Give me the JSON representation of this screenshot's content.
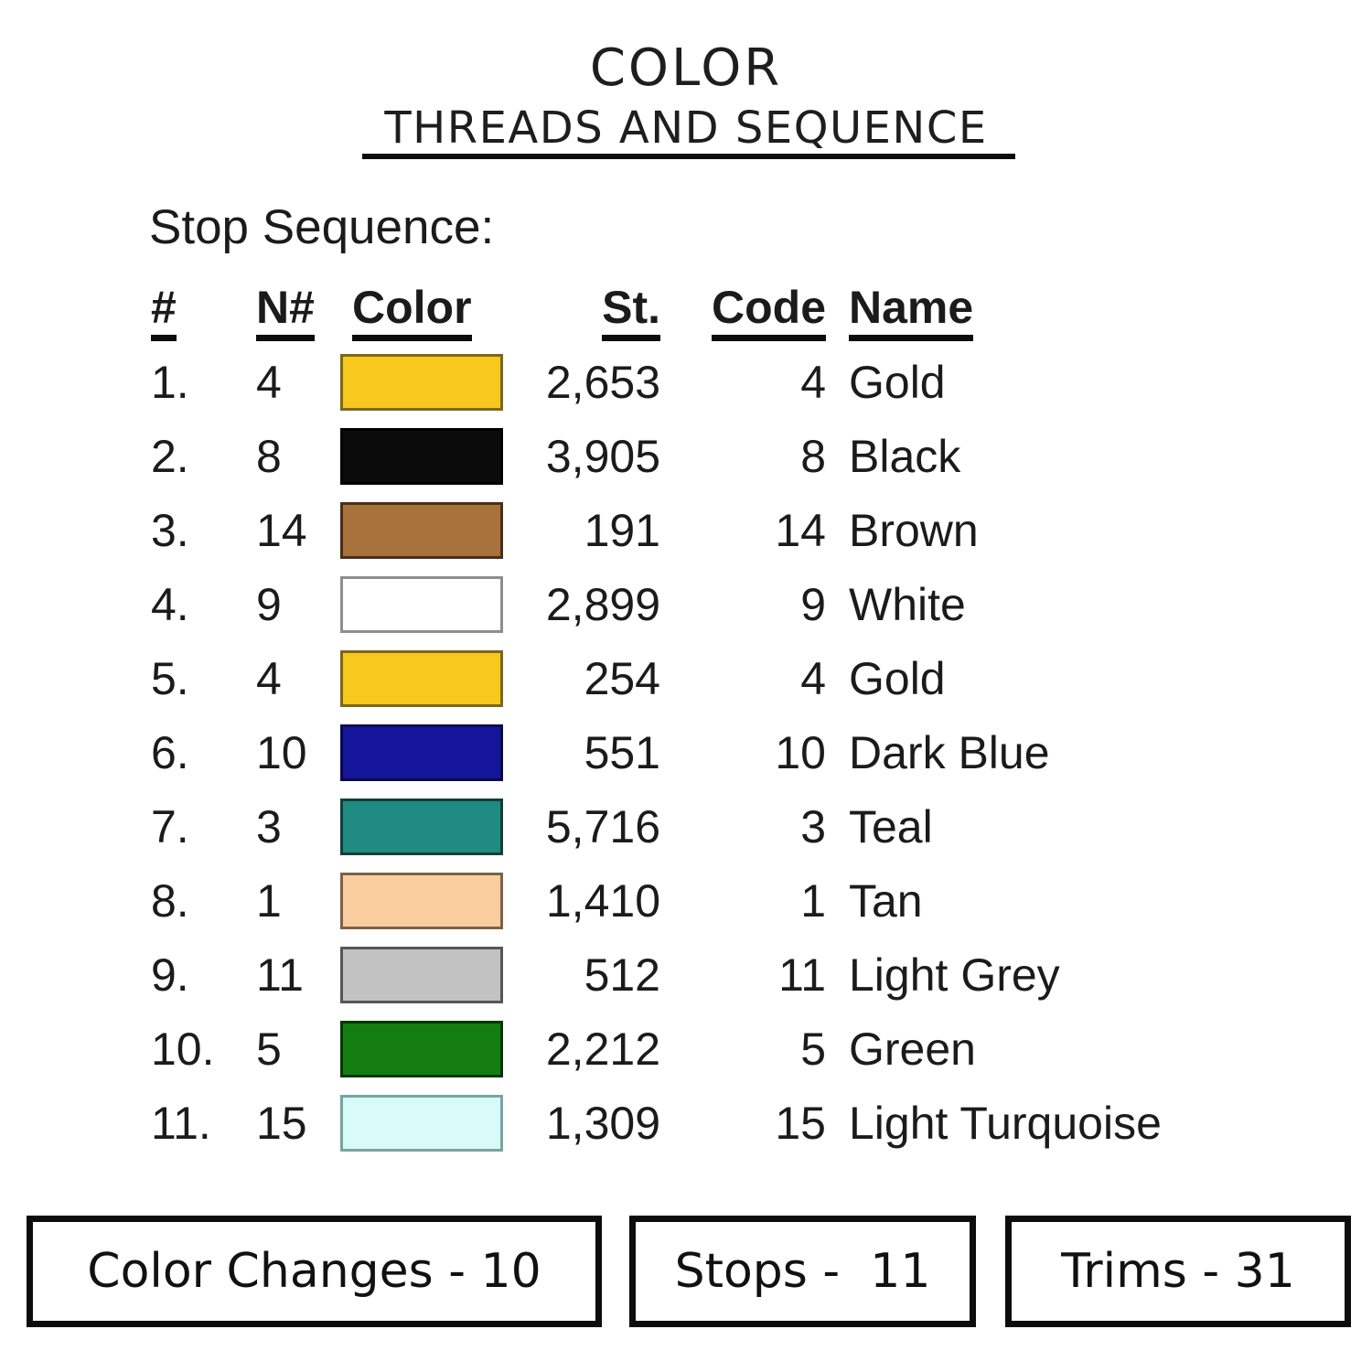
{
  "title": {
    "line1": "COLOR",
    "line2": "THREADS AND SEQUENCE"
  },
  "section_heading": "Stop Sequence:",
  "table": {
    "headers": {
      "num": "#",
      "n_num": "N#",
      "color": "Color",
      "stitches": "St.",
      "code": "Code",
      "name": "Name"
    },
    "rows": [
      {
        "num": "1.",
        "n_num": "4",
        "swatch": "#F7C81D",
        "swatch_border": "#7C671B",
        "stitches": "2,653",
        "code": "4",
        "name": "Gold"
      },
      {
        "num": "2.",
        "n_num": "8",
        "swatch": "#0B0B0B",
        "swatch_border": "#000000",
        "stitches": "3,905",
        "code": "8",
        "name": "Black"
      },
      {
        "num": "3.",
        "n_num": "14",
        "swatch": "#A9713B",
        "swatch_border": "#46301A",
        "stitches": "191",
        "code": "14",
        "name": "Brown"
      },
      {
        "num": "4.",
        "n_num": "9",
        "swatch": "#FFFFFF",
        "swatch_border": "#8E8E8E",
        "stitches": "2,899",
        "code": "9",
        "name": "White"
      },
      {
        "num": "5.",
        "n_num": "4",
        "swatch": "#F7C81D",
        "swatch_border": "#7C671B",
        "stitches": "254",
        "code": "4",
        "name": "Gold"
      },
      {
        "num": "6.",
        "n_num": "10",
        "swatch": "#15159B",
        "swatch_border": "#0A0A4A",
        "stitches": "551",
        "code": "10",
        "name": "Dark Blue"
      },
      {
        "num": "7.",
        "n_num": "3",
        "swatch": "#1F8B82",
        "swatch_border": "#123F3B",
        "stitches": "5,716",
        "code": "3",
        "name": "Teal"
      },
      {
        "num": "8.",
        "n_num": "1",
        "swatch": "#FACD9E",
        "swatch_border": "#7D6147",
        "stitches": "1,410",
        "code": "1",
        "name": "Tan"
      },
      {
        "num": "9.",
        "n_num": "11",
        "swatch": "#C2C2C2",
        "swatch_border": "#565656",
        "stitches": "512",
        "code": "11",
        "name": "Light Grey"
      },
      {
        "num": "10.",
        "n_num": "5",
        "swatch": "#147D12",
        "swatch_border": "#063806",
        "stitches": "2,212",
        "code": "5",
        "name": "Green"
      },
      {
        "num": "11.",
        "n_num": "15",
        "swatch": "#D8FBF9",
        "swatch_border": "#79A3A1",
        "stitches": "1,309",
        "code": "15",
        "name": "Light Turquoise"
      }
    ]
  },
  "footer": {
    "boxes": [
      {
        "label": "Color Changes - 10"
      },
      {
        "label": "Stops -  11"
      },
      {
        "label": "Trims - 31"
      }
    ]
  }
}
